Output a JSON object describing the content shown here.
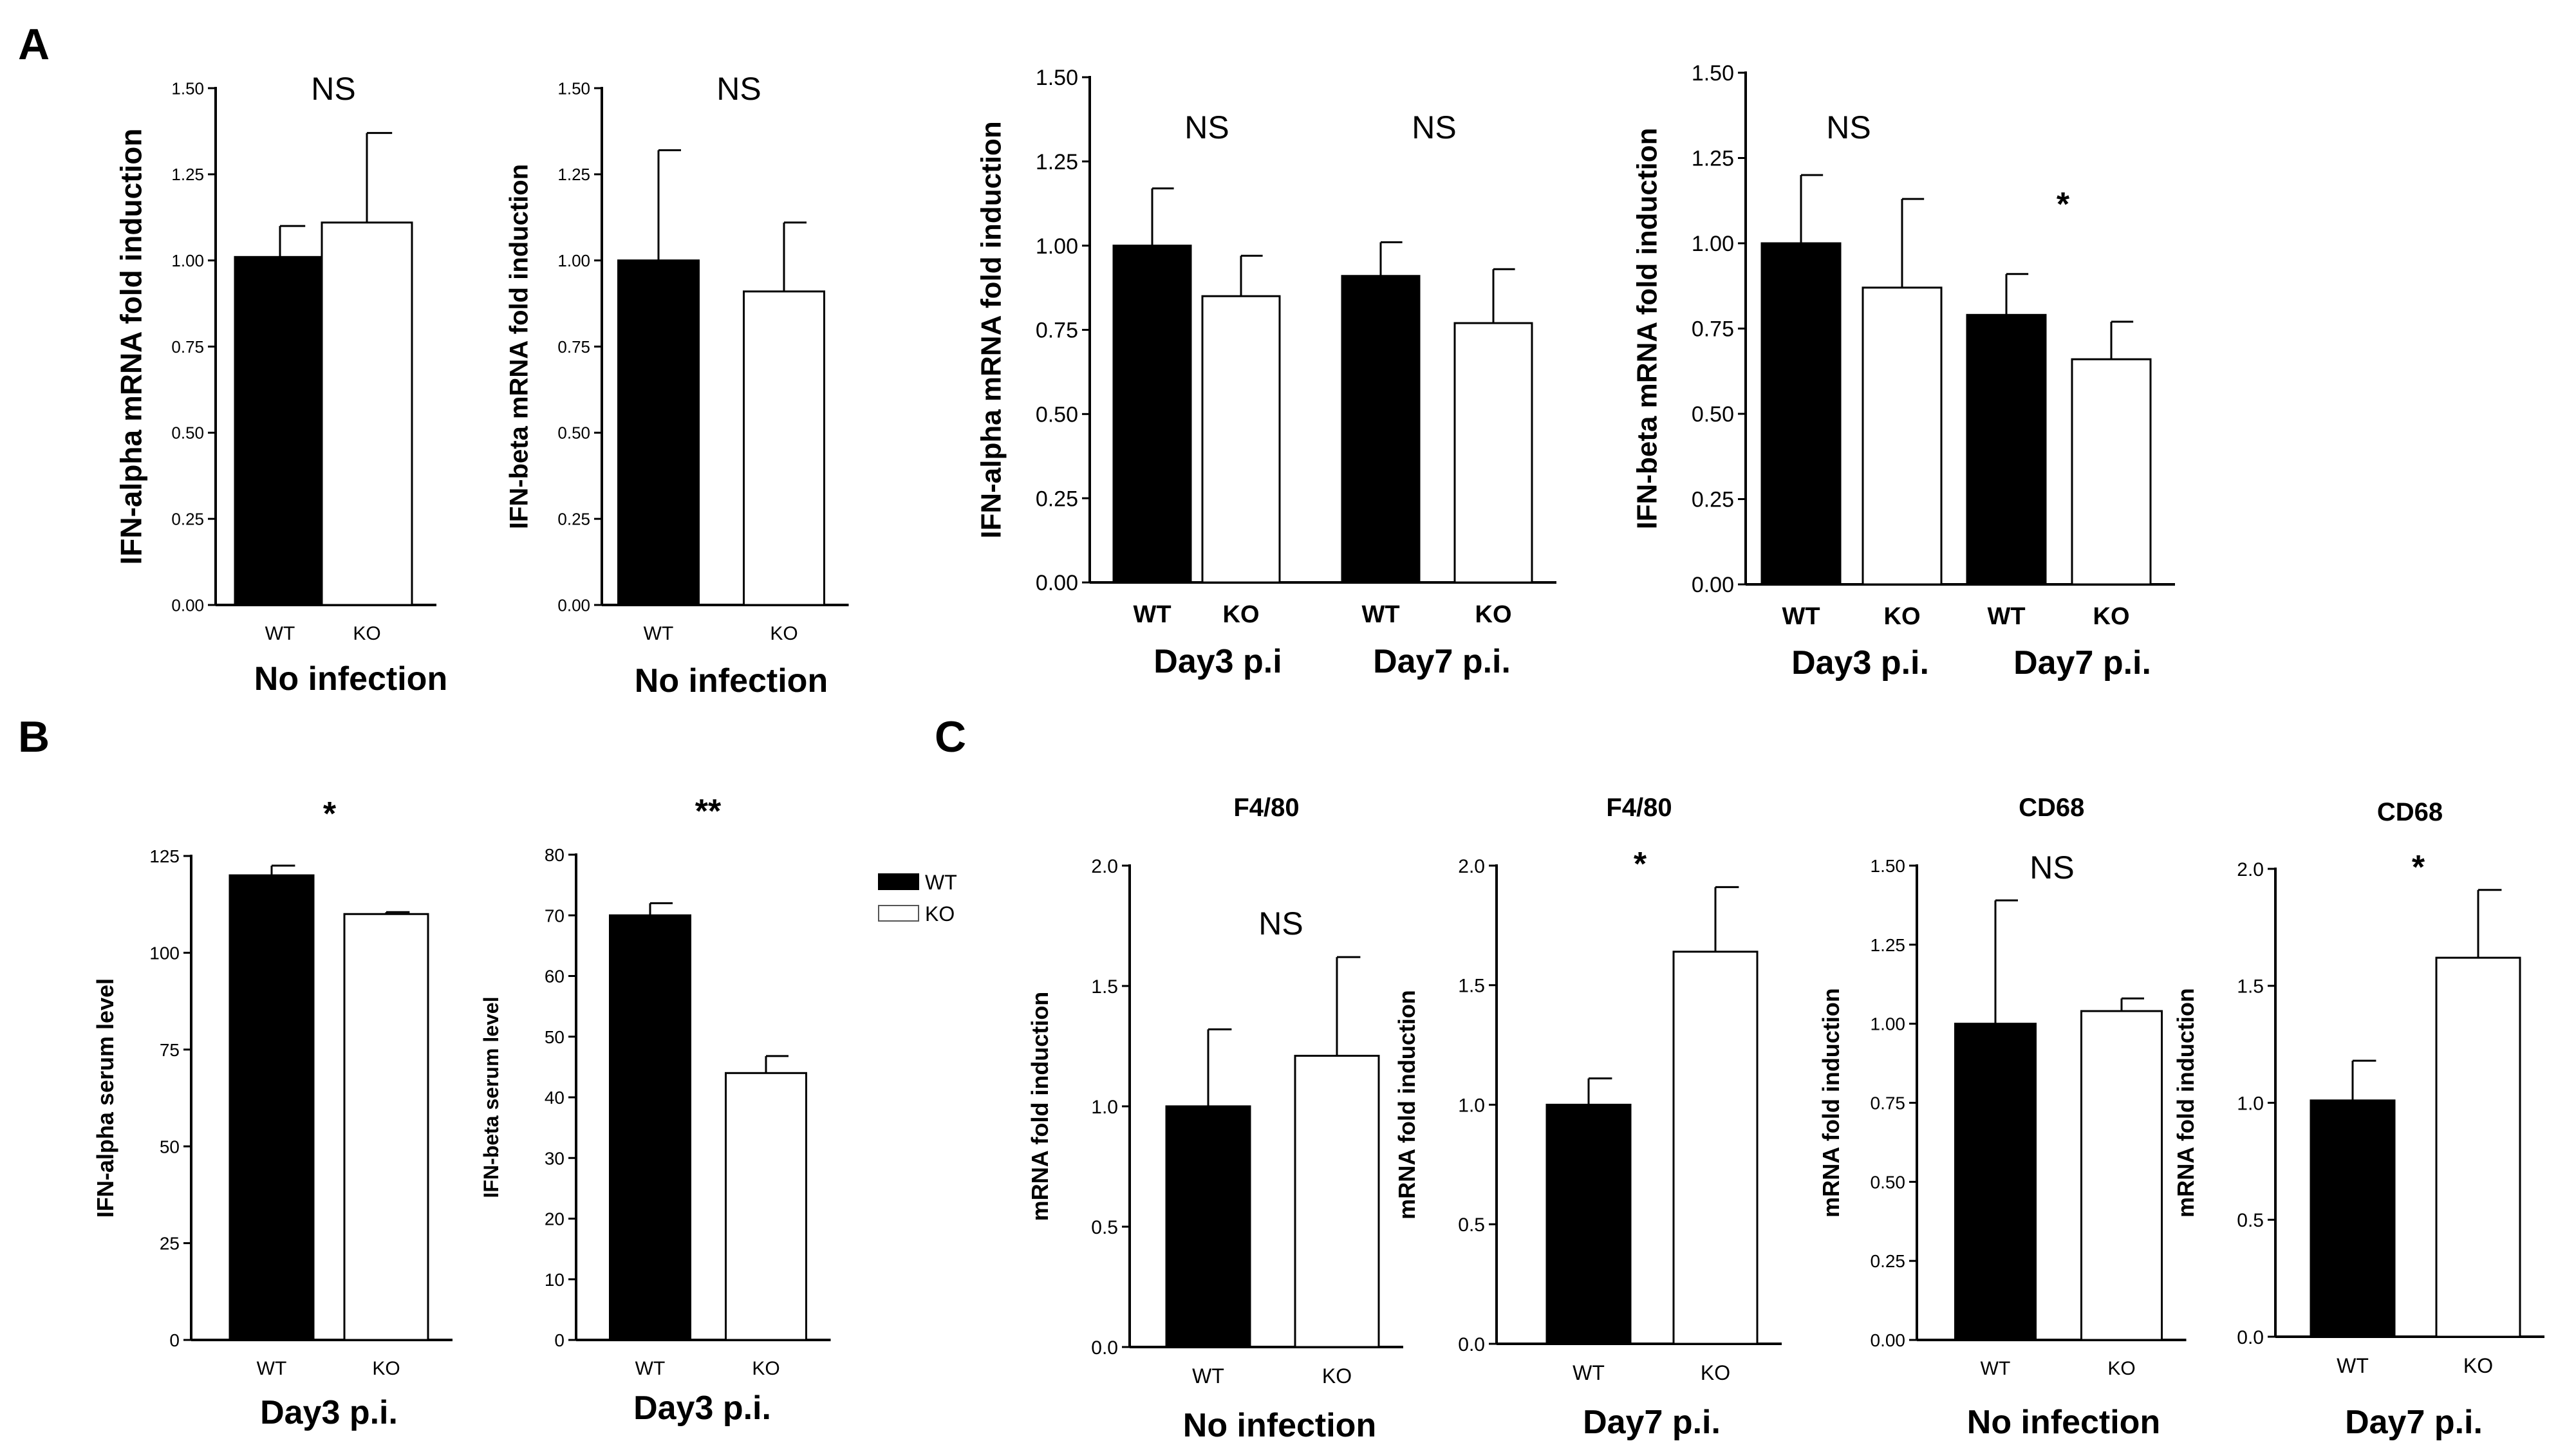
{
  "figure": {
    "panel_labels": [
      "A",
      "B",
      "C"
    ],
    "legend": {
      "entries": [
        {
          "label": "WT",
          "fill": "#000000"
        },
        {
          "label": "KO",
          "fill": "#ffffff"
        }
      ]
    },
    "colors": {
      "wt": "#000000",
      "ko": "#ffffff",
      "stroke": "#000000"
    }
  },
  "chart_data": [
    {
      "id": "a1",
      "type": "bar",
      "title": "",
      "ylabel": "IFN-alpha mRNA fold induction",
      "xlabel": "No infection",
      "ylim": [
        0,
        1.5
      ],
      "yticks": [
        "0.00",
        "0.25",
        "0.50",
        "0.75",
        "1.00",
        "1.25",
        "1.50"
      ],
      "categories": [
        "WT",
        "KO"
      ],
      "values": [
        1.01,
        1.11
      ],
      "errors": [
        0.09,
        0.26
      ],
      "significance": [
        {
          "label": "NS"
        }
      ]
    },
    {
      "id": "a2",
      "type": "bar",
      "title": "",
      "ylabel": "IFN-beta mRNA fold induction",
      "xlabel": "No infection",
      "ylim": [
        0,
        1.5
      ],
      "yticks": [
        "0.00",
        "0.25",
        "0.50",
        "0.75",
        "1.00",
        "1.25",
        "1.50"
      ],
      "categories": [
        "WT",
        "KO"
      ],
      "values": [
        1.0,
        0.91
      ],
      "errors": [
        0.32,
        0.2
      ],
      "significance": [
        {
          "label": "NS"
        }
      ]
    },
    {
      "id": "a3",
      "type": "bar",
      "title": "",
      "ylabel": "IFN-alpha mRNA fold induction",
      "xlabel": "",
      "ylim": [
        0,
        1.5
      ],
      "yticks": [
        "0.00",
        "0.25",
        "0.50",
        "0.75",
        "1.00",
        "1.25",
        "1.50"
      ],
      "categories": [
        "WT",
        "KO",
        "WT",
        "KO"
      ],
      "groups": [
        "Day3 p.i",
        "Day7 p.i."
      ],
      "values": [
        1.0,
        0.85,
        0.91,
        0.77
      ],
      "errors": [
        0.17,
        0.12,
        0.1,
        0.16
      ],
      "significance": [
        {
          "label": "NS",
          "group": 0
        },
        {
          "label": "NS",
          "group": 1
        }
      ]
    },
    {
      "id": "a4",
      "type": "bar",
      "title": "",
      "ylabel": "IFN-beta mRNA fold induction",
      "xlabel": "",
      "ylim": [
        0,
        1.5
      ],
      "yticks": [
        "0.00",
        "0.25",
        "0.50",
        "0.75",
        "1.00",
        "1.25",
        "1.50"
      ],
      "categories": [
        "WT",
        "KO",
        "WT",
        "KO"
      ],
      "groups": [
        "Day3 p.i.",
        "Day7 p.i."
      ],
      "values": [
        1.0,
        0.87,
        0.79,
        0.66
      ],
      "errors": [
        0.2,
        0.26,
        0.12,
        0.11
      ],
      "significance": [
        {
          "label": "NS",
          "group": 0
        },
        {
          "label": "*",
          "group": 1
        }
      ]
    },
    {
      "id": "b1",
      "type": "bar",
      "title": "",
      "ylabel": "IFN-alpha serum level",
      "xlabel": "Day3 p.i.",
      "ylim": [
        0,
        125
      ],
      "yticks": [
        "0",
        "25",
        "50",
        "75",
        "100",
        "125"
      ],
      "categories": [
        "WT",
        "KO"
      ],
      "values": [
        120,
        110
      ],
      "errors": [
        2.5,
        0.5
      ],
      "significance": [
        {
          "label": "*"
        }
      ]
    },
    {
      "id": "b2",
      "type": "bar",
      "title": "",
      "ylabel": "IFN-beta serum level",
      "xlabel": "Day3 p.i.",
      "ylim": [
        0,
        80
      ],
      "yticks": [
        "0",
        "10",
        "20",
        "30",
        "40",
        "50",
        "60",
        "70",
        "80"
      ],
      "categories": [
        "WT",
        "KO"
      ],
      "values": [
        70,
        44
      ],
      "errors": [
        2,
        2.8
      ],
      "significance": [
        {
          "label": "**"
        }
      ]
    },
    {
      "id": "c1",
      "type": "bar",
      "title": "F4/80",
      "ylabel": "mRNA fold induction",
      "xlabel": "No infection",
      "ylim": [
        0,
        2.0
      ],
      "yticks": [
        "0.0",
        "0.5",
        "1.0",
        "1.5",
        "2.0"
      ],
      "categories": [
        "WT",
        "KO"
      ],
      "values": [
        1.0,
        1.21
      ],
      "errors": [
        0.32,
        0.41
      ],
      "significance": [
        {
          "label": "NS"
        }
      ]
    },
    {
      "id": "c2",
      "type": "bar",
      "title": "F4/80",
      "ylabel": "mRNA fold induction",
      "xlabel": "Day7 p.i.",
      "ylim": [
        0,
        2.0
      ],
      "yticks": [
        "0.0",
        "0.5",
        "1.0",
        "1.5",
        "2.0"
      ],
      "categories": [
        "WT",
        "KO"
      ],
      "values": [
        1.0,
        1.64
      ],
      "errors": [
        0.11,
        0.27
      ],
      "significance": [
        {
          "label": "*"
        }
      ]
    },
    {
      "id": "c3",
      "type": "bar",
      "title": "CD68",
      "ylabel": "mRNA fold induction",
      "xlabel": "No infection",
      "ylim": [
        0,
        1.5
      ],
      "yticks": [
        "0.00",
        "0.25",
        "0.50",
        "0.75",
        "1.00",
        "1.25",
        "1.50"
      ],
      "categories": [
        "WT",
        "KO"
      ],
      "values": [
        1.0,
        1.04
      ],
      "errors": [
        0.39,
        0.04
      ],
      "significance": [
        {
          "label": "NS"
        }
      ]
    },
    {
      "id": "c4",
      "type": "bar",
      "title": "CD68",
      "ylabel": "mRNA fold induction",
      "xlabel": "Day7 p.i.",
      "ylim": [
        0,
        2.0
      ],
      "yticks": [
        "0.0",
        "0.5",
        "1.0",
        "1.5",
        "2.0"
      ],
      "categories": [
        "WT",
        "KO"
      ],
      "values": [
        1.01,
        1.62
      ],
      "errors": [
        0.17,
        0.29
      ],
      "significance": [
        {
          "label": "*"
        }
      ]
    }
  ]
}
